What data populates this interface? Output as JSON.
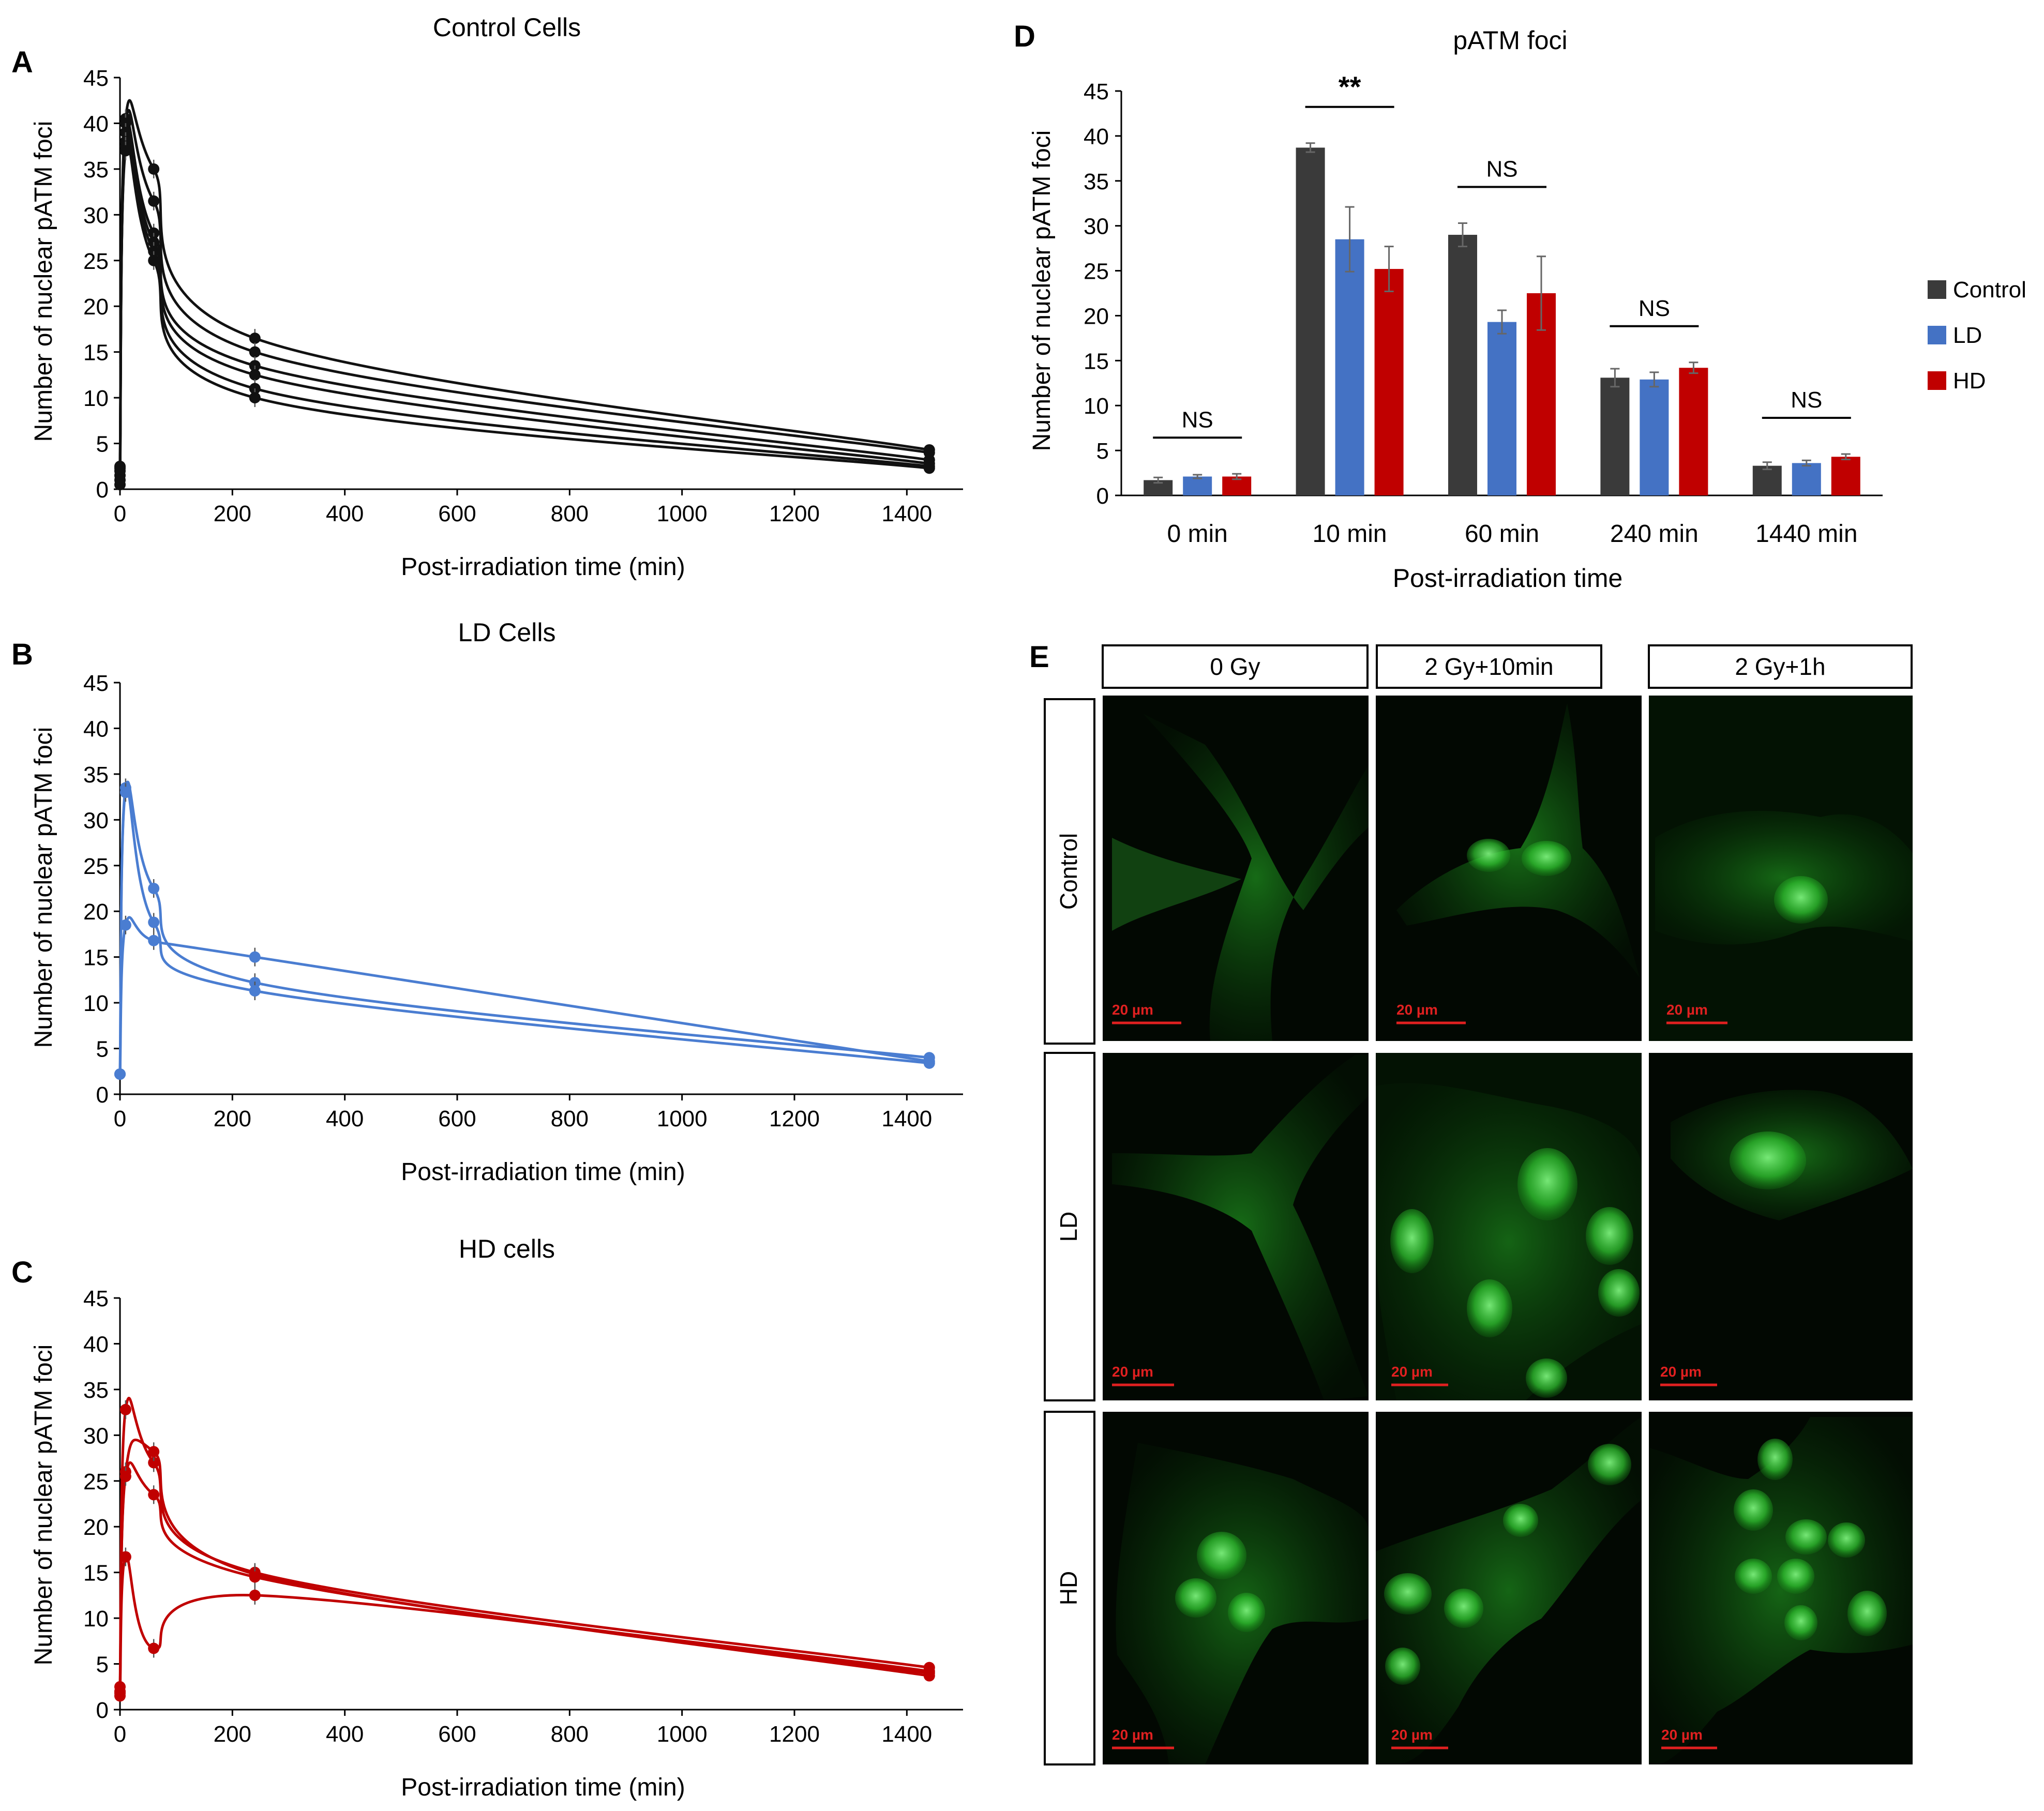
{
  "colors": {
    "control": "#111111",
    "ld": "#4a7dd1",
    "hd": "#c00000",
    "bar_control": "#3a3a3a",
    "bar_ld": "#4472c4",
    "bar_hd": "#c00000",
    "scale_bar": "#e02020",
    "axis": "#000000"
  },
  "chart_data": [
    {
      "panel": "A",
      "type": "line",
      "title": "Control Cells",
      "xlabel": "Post-irradiation time (min)",
      "ylabel": "Number of nuclear pATM foci",
      "xlim": [
        0,
        1500
      ],
      "ylim": [
        0,
        45
      ],
      "xticks": [
        "0",
        "200",
        "400",
        "600",
        "800",
        "1000",
        "1200",
        "1400"
      ],
      "yticks": [
        "0",
        "5",
        "10",
        "15",
        "20",
        "25",
        "30",
        "35",
        "40",
        "45"
      ],
      "x": [
        0,
        10,
        60,
        240,
        1440
      ],
      "series": [
        {
          "values": [
            2.3,
            40.5,
            35.0,
            16.5,
            4.3
          ]
        },
        {
          "values": [
            1.5,
            40.0,
            31.5,
            15.0,
            4.0
          ]
        },
        {
          "values": [
            2.0,
            39.0,
            28.0,
            13.5,
            3.2
          ]
        },
        {
          "values": [
            0.5,
            38.0,
            27.0,
            12.5,
            2.8
          ]
        },
        {
          "values": [
            1.0,
            37.5,
            26.0,
            11.0,
            2.5
          ]
        },
        {
          "values": [
            2.5,
            37.0,
            25.0,
            10.0,
            2.3
          ]
        }
      ],
      "grid": false
    },
    {
      "panel": "B",
      "type": "line",
      "title": "LD Cells",
      "xlabel": "Post-irradiation time (min)",
      "ylabel": "Number of nuclear pATM foci",
      "xlim": [
        0,
        1500
      ],
      "ylim": [
        0,
        45
      ],
      "xticks": [
        "0",
        "200",
        "400",
        "600",
        "800",
        "1000",
        "1200",
        "1400"
      ],
      "yticks": [
        "0",
        "5",
        "10",
        "15",
        "20",
        "25",
        "30",
        "35",
        "40",
        "45"
      ],
      "x": [
        0,
        10,
        60,
        240,
        1440
      ],
      "series": [
        {
          "values": [
            2.2,
            33.5,
            22.5,
            12.2,
            4.0
          ]
        },
        {
          "values": [
            2.2,
            33.0,
            18.8,
            11.3,
            3.4
          ]
        },
        {
          "values": [
            2.2,
            18.5,
            16.8,
            15.0,
            3.6
          ]
        }
      ],
      "grid": false
    },
    {
      "panel": "C",
      "type": "line",
      "title": "HD cells",
      "xlabel": "Post-irradiation time (min)",
      "ylabel": "Number of nuclear pATM foci",
      "xlim": [
        0,
        1500
      ],
      "ylim": [
        0,
        45
      ],
      "xticks": [
        "0",
        "200",
        "400",
        "600",
        "800",
        "1000",
        "1200",
        "1400"
      ],
      "yticks": [
        "0",
        "5",
        "10",
        "15",
        "20",
        "25",
        "30",
        "35",
        "40",
        "45"
      ],
      "x": [
        0,
        10,
        60,
        240,
        1440
      ],
      "series": [
        {
          "values": [
            2.5,
            32.8,
            27.0,
            15.0,
            4.6
          ]
        },
        {
          "values": [
            2.0,
            26.0,
            28.2,
            14.8,
            4.2
          ]
        },
        {
          "values": [
            1.8,
            25.5,
            23.5,
            14.5,
            3.7
          ]
        },
        {
          "values": [
            1.5,
            16.7,
            6.7,
            12.5,
            4.0
          ]
        }
      ],
      "grid": false
    },
    {
      "panel": "D",
      "type": "bar",
      "title": "pATM foci",
      "xlabel": "Post-irradiation time",
      "ylabel": "Number of nuclear pATM foci",
      "ylim": [
        0,
        45
      ],
      "yticks": [
        "0",
        "5",
        "10",
        "15",
        "20",
        "25",
        "30",
        "35",
        "40",
        "45"
      ],
      "categories": [
        "0 min",
        "10 min",
        "60 min",
        "240 min",
        "1440 min"
      ],
      "series": [
        {
          "name": "Control",
          "values": [
            1.7,
            38.7,
            29.0,
            13.1,
            3.3
          ],
          "errors": [
            0.3,
            0.5,
            1.3,
            1.0,
            0.4
          ]
        },
        {
          "name": "LD",
          "values": [
            2.1,
            28.5,
            19.3,
            12.9,
            3.6
          ],
          "errors": [
            0.2,
            3.6,
            1.3,
            0.8,
            0.3
          ]
        },
        {
          "name": "HD",
          "values": [
            2.1,
            25.2,
            22.5,
            14.2,
            4.3
          ],
          "errors": [
            0.3,
            2.5,
            4.1,
            0.6,
            0.3
          ]
        }
      ],
      "significance": [
        "NS",
        "**",
        "NS",
        "NS",
        "NS"
      ],
      "legend": "right"
    }
  ],
  "panel_letters": {
    "a": "A",
    "b": "B",
    "c": "C",
    "d": "D",
    "e": "E"
  },
  "micrographs": {
    "columns": [
      "0 Gy",
      "2 Gy+10min",
      "2 Gy+1h"
    ],
    "rows": [
      "Control",
      "LD",
      "HD"
    ],
    "scale_label": "20 µm"
  }
}
